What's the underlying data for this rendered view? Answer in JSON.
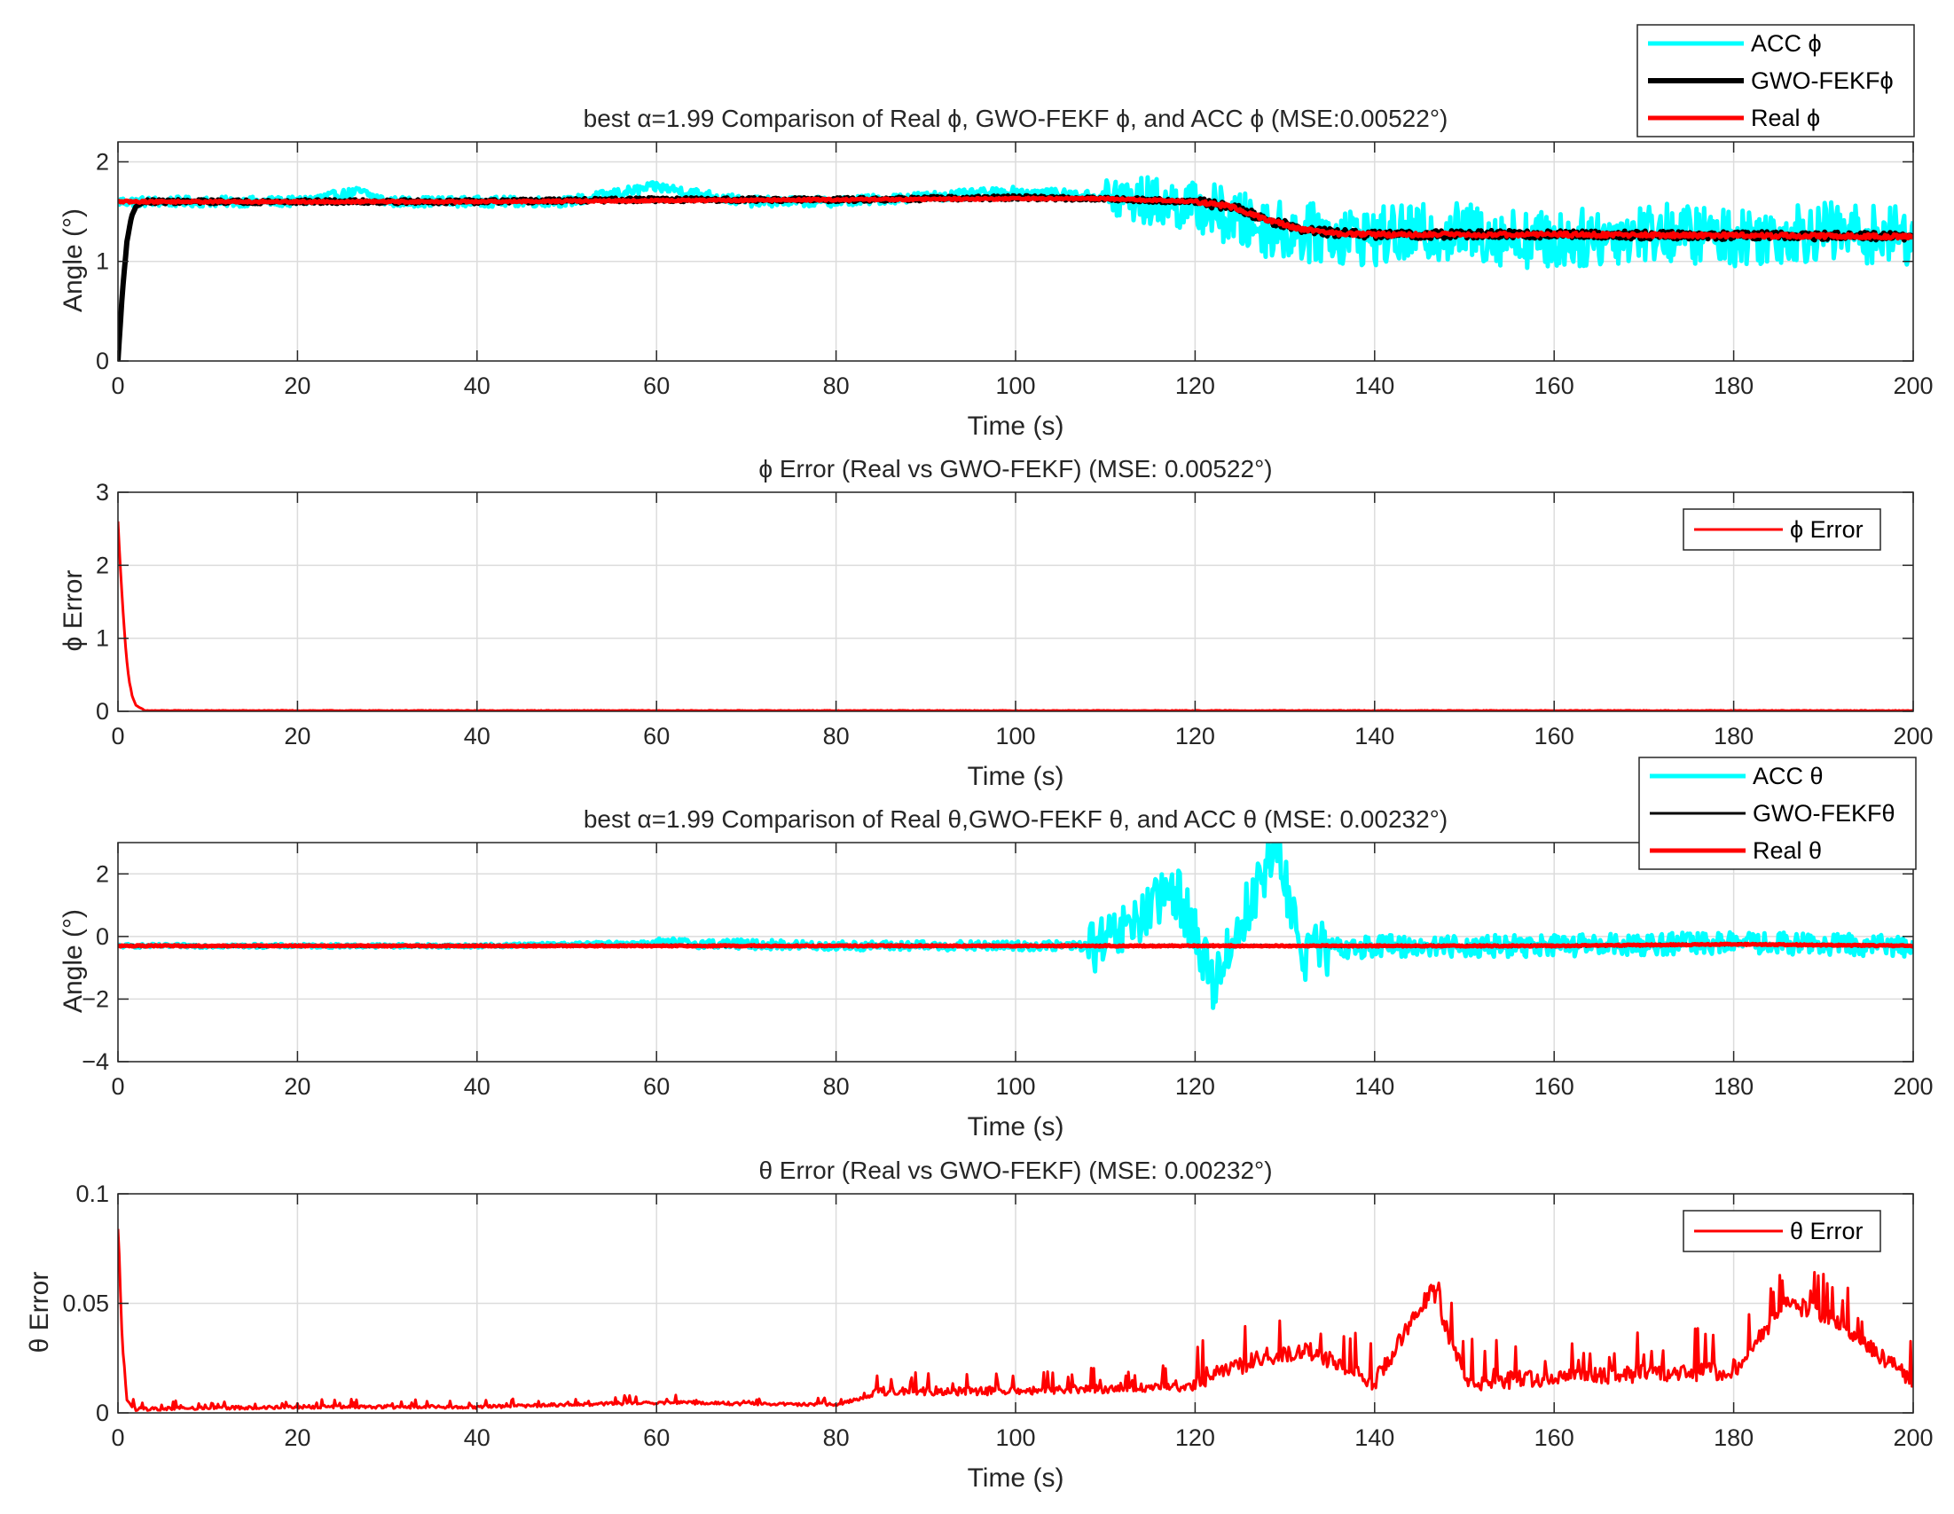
{
  "chart_data": [
    {
      "type": "line",
      "title": "best α=1.99  Comparison of Real ϕ, GWO-FEKF ϕ, and ACC ϕ (MSE:0.00522°)",
      "xlabel": "Time (s)",
      "ylabel": "Angle (°)",
      "xlim": [
        0,
        200
      ],
      "ylim": [
        0,
        2.2
      ],
      "xticks": [
        0,
        20,
        40,
        60,
        80,
        100,
        120,
        140,
        160,
        180,
        200
      ],
      "yticks": [
        0,
        1,
        2
      ],
      "grid": true,
      "legend_position": "top-right",
      "series": [
        {
          "name": "ACC ϕ",
          "color": "#00ffff",
          "x": [
            0,
            10,
            20,
            27,
            30,
            40,
            50,
            60,
            70,
            80,
            90,
            100,
            110,
            120,
            125,
            130,
            140,
            150,
            160,
            170,
            180,
            190,
            200
          ],
          "values": [
            1.6,
            1.6,
            1.6,
            1.7,
            1.6,
            1.6,
            1.6,
            1.75,
            1.6,
            1.6,
            1.65,
            1.7,
            1.65,
            1.55,
            1.4,
            1.3,
            1.25,
            1.3,
            1.2,
            1.3,
            1.25,
            1.3,
            1.25
          ]
        },
        {
          "name": "GWO-FEKFϕ",
          "color": "#000000",
          "x": [
            0,
            0.5,
            1,
            1.5,
            2,
            3,
            10,
            20,
            40,
            60,
            80,
            100,
            110,
            120,
            124,
            128,
            132,
            136,
            140,
            160,
            180,
            200
          ],
          "values": [
            0,
            0.7,
            1.2,
            1.45,
            1.55,
            1.6,
            1.6,
            1.6,
            1.6,
            1.62,
            1.62,
            1.64,
            1.63,
            1.6,
            1.55,
            1.42,
            1.32,
            1.28,
            1.27,
            1.27,
            1.26,
            1.25
          ]
        },
        {
          "name": "Real ϕ",
          "color": "#ff0000",
          "x": [
            0,
            20,
            40,
            60,
            80,
            100,
            110,
            120,
            124,
            128,
            132,
            136,
            140,
            160,
            180,
            200
          ],
          "values": [
            1.6,
            1.6,
            1.6,
            1.61,
            1.62,
            1.63,
            1.63,
            1.6,
            1.55,
            1.42,
            1.32,
            1.28,
            1.27,
            1.27,
            1.26,
            1.25
          ]
        }
      ]
    },
    {
      "type": "line",
      "title": "ϕ Error (Real vs GWO-FEKF) (MSE: 0.00522°)",
      "xlabel": "Time (s)",
      "ylabel": "ϕ Error",
      "xlim": [
        0,
        200
      ],
      "ylim": [
        0,
        3
      ],
      "xticks": [
        0,
        20,
        40,
        60,
        80,
        100,
        120,
        140,
        160,
        180,
        200
      ],
      "yticks": [
        0,
        1,
        2,
        3
      ],
      "grid": true,
      "legend_position": "top-right",
      "series": [
        {
          "name": "ϕ Error",
          "color": "#ff0000",
          "x": [
            0,
            0.3,
            0.6,
            0.9,
            1.2,
            1.6,
            2,
            3,
            200
          ],
          "values": [
            2.6,
            1.9,
            1.3,
            0.8,
            0.45,
            0.2,
            0.08,
            0.01,
            0.01
          ]
        }
      ]
    },
    {
      "type": "line",
      "title": "best α=1.99 Comparison of Real θ,GWO-FEKF θ, and ACC θ (MSE: 0.00232°)",
      "xlabel": "Time (s)",
      "ylabel": "Angle (°)",
      "xlim": [
        0,
        200
      ],
      "ylim": [
        -4,
        3
      ],
      "xticks": [
        0,
        20,
        40,
        60,
        80,
        100,
        120,
        140,
        160,
        180,
        200
      ],
      "yticks": [
        -4,
        -2,
        0,
        2
      ],
      "grid": true,
      "legend_position": "top-right",
      "series": [
        {
          "name": "ACC θ",
          "color": "#00ffff",
          "x": [
            0,
            20,
            40,
            60,
            80,
            100,
            110,
            118,
            122,
            126,
            129,
            132,
            140,
            160,
            180,
            200
          ],
          "values": [
            -0.3,
            -0.3,
            -0.3,
            -0.2,
            -0.3,
            -0.3,
            -0.3,
            1.5,
            -1.5,
            1.0,
            2.9,
            -0.5,
            -0.3,
            -0.3,
            -0.2,
            -0.3
          ]
        },
        {
          "name": "GWO-FEKFθ",
          "color": "#000000",
          "x": [
            0,
            20,
            40,
            60,
            80,
            100,
            120,
            140,
            160,
            180,
            200
          ],
          "values": [
            -0.3,
            -0.3,
            -0.3,
            -0.3,
            -0.3,
            -0.3,
            -0.3,
            -0.3,
            -0.3,
            -0.25,
            -0.3
          ]
        },
        {
          "name": "Real θ",
          "color": "#ff0000",
          "x": [
            0,
            20,
            40,
            60,
            80,
            100,
            120,
            140,
            160,
            180,
            200
          ],
          "values": [
            -0.3,
            -0.3,
            -0.3,
            -0.3,
            -0.3,
            -0.3,
            -0.3,
            -0.3,
            -0.3,
            -0.25,
            -0.3
          ]
        }
      ]
    },
    {
      "type": "line",
      "title": "θ Error (Real vs GWO-FEKF) (MSE: 0.00232°)",
      "xlabel": "Time (s)",
      "ylabel": "θ Error",
      "xlim": [
        0,
        200
      ],
      "ylim": [
        0,
        0.1
      ],
      "xticks": [
        0,
        20,
        40,
        60,
        80,
        100,
        120,
        140,
        160,
        180,
        200
      ],
      "yticks": [
        0,
        0.05,
        0.1
      ],
      "grid": true,
      "legend_position": "top-right",
      "series": [
        {
          "name": "θ Error",
          "color": "#ff0000",
          "x": [
            0,
            0.5,
            1,
            2,
            20,
            40,
            60,
            80,
            85,
            100,
            120,
            128,
            133,
            140,
            146.5,
            150,
            160,
            170,
            180,
            186,
            191,
            200
          ],
          "values": [
            0.083,
            0.03,
            0.005,
            0.001,
            0.002,
            0.002,
            0.004,
            0.003,
            0.008,
            0.008,
            0.01,
            0.022,
            0.024,
            0.01,
            0.053,
            0.01,
            0.012,
            0.014,
            0.015,
            0.046,
            0.04,
            0.01
          ]
        }
      ]
    }
  ]
}
